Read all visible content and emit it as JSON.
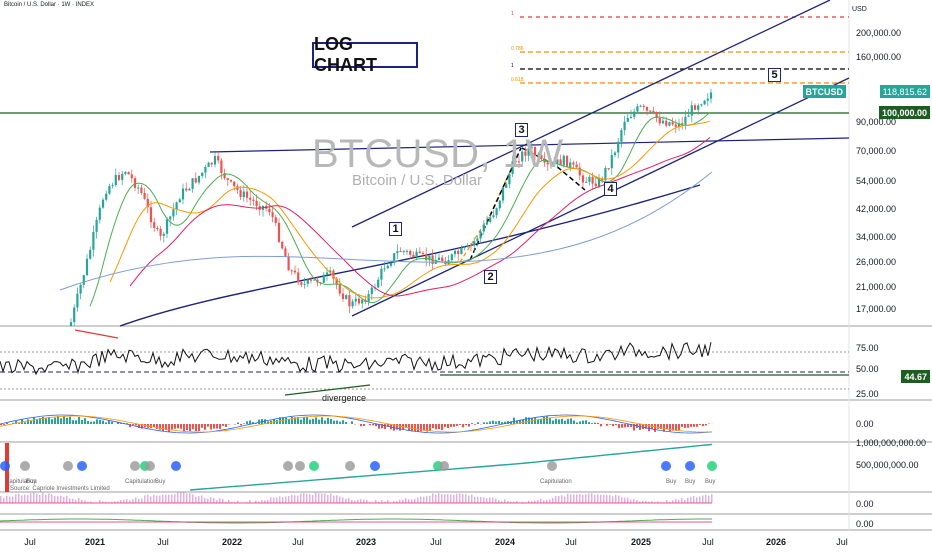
{
  "header": {
    "symbol": "Bitcoin / U.S. Dollar · 1W · INDEX",
    "currency": "USD"
  },
  "annotations": {
    "log_chart_label": "LOG CHART",
    "watermark_title": "BTCUSD, 1W",
    "watermark_subtitle": "Bitcoin / U.S. Dollar",
    "divergence_label": "divergence",
    "source_label": "Source: Capriole Investments Limited",
    "waves": [
      "1",
      "2",
      "3",
      "4",
      "5"
    ],
    "fib_labels": [
      "1",
      "0.786",
      "1",
      "0.618"
    ]
  },
  "price_tags": {
    "btcusd_label": "BTCUSD",
    "btcusd_value": "118,815.62",
    "level_value": "100,000.00",
    "rsi_value": "44.67"
  },
  "colors": {
    "up": "#26a69a",
    "down": "#ef5350",
    "channel": "#1a237e",
    "rsi": "#111111",
    "ma_green": "#4caf50",
    "ma_orange": "#ff9800",
    "ma_red": "#e91e63",
    "ma_blue": "#7e9dd8",
    "fib_red": "#e53935",
    "fib_orange": "#fb8c00",
    "fib_black": "#000000",
    "tag_green": "#1b5e20",
    "tag_teal": "#26a69a"
  },
  "chart_data": {
    "type": "candlestick",
    "scale": "log",
    "price_axis_ticks": [
      "200,000.00",
      "160,000.00",
      "90,000.00",
      "70,000.00",
      "54,000.00",
      "42,000.00",
      "34,000.00",
      "26,000.00",
      "21,000.00",
      "17,000.00"
    ],
    "rsi_axis_ticks": [
      "75.00",
      "50.00",
      "25.00"
    ],
    "macd_axis_ticks": [
      "0.00"
    ],
    "volume_axis_ticks": [
      "1,000,000,000.00",
      "500,000,000.00"
    ],
    "lower_axis_ticks": [
      "0.00",
      "0.00"
    ],
    "time_axis_ticks": [
      "Jul",
      "2021",
      "Jul",
      "2022",
      "Jul",
      "2023",
      "Jul",
      "2024",
      "Jul",
      "2025",
      "Jul",
      "2026",
      "Jul"
    ],
    "capitulation_label": "Capitulation",
    "buy_label": "Buy",
    "signal_markers_pre": [
      "Capitulation",
      "Buy",
      "Capitulation",
      "Buy"
    ],
    "signal_markers_post": [
      "Capitulation",
      "Buy",
      "Buy",
      "Buy"
    ]
  }
}
